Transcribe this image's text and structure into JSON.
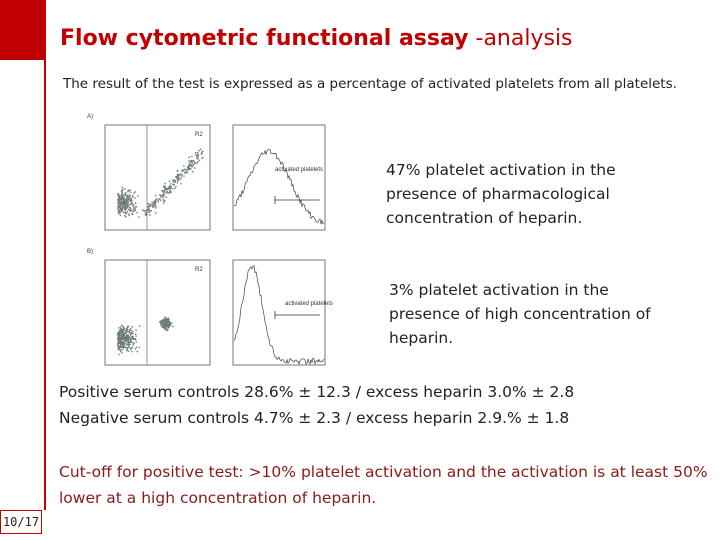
{
  "header": {
    "title_bold": "Flow cytometric functional assay",
    "title_rest": "-analysis",
    "subtitle": "The result of the test is expressed as a percentage of activated platelets from all platelets."
  },
  "figure": {
    "panels": [
      {
        "label": "A)",
        "gate": "R2",
        "histogram_label": "activated platelets",
        "note": "47%  platelet activation in the presence of pharmacological concentration of heparin."
      },
      {
        "label": "B)",
        "gate": "R2",
        "histogram_label": "activated platelets",
        "note": "3%  platelet activation in the presence of high concentration of heparin."
      }
    ]
  },
  "results": [
    "Positive serum controls 28.6% ± 12.3 / excess heparin 3.0%  ± 2.8",
    "Negative serum controls 4.7% ± 2.3 / excess heparin 2.9.%  ± 1.8"
  ],
  "cutoff": "Cut-off for positive test: >10% platelet activation and the activation is at least 50% lower at a high concentration of heparin.",
  "page": "10/17"
}
